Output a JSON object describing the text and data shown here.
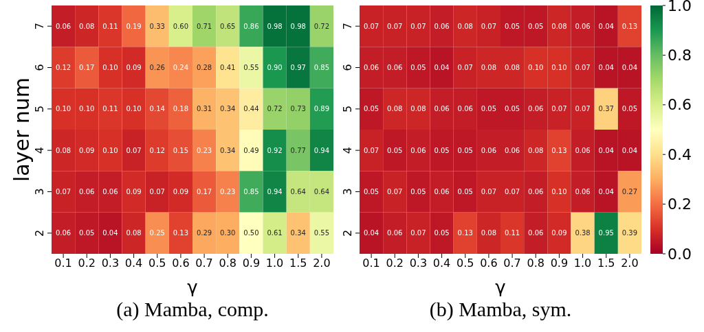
{
  "chart_data": [
    {
      "type": "heatmap",
      "title": "(a) Mamba, comp.",
      "xlabel": "γ",
      "ylabel": "layer num",
      "categories": [
        "0.1",
        "0.2",
        "0.3",
        "0.4",
        "0.5",
        "0.6",
        "0.7",
        "0.8",
        "0.9",
        "1.0",
        "1.5",
        "2.0"
      ],
      "y_categories": [
        "7",
        "6",
        "5",
        "4",
        "3",
        "2"
      ],
      "cells": [
        [
          0.06,
          0.08,
          0.11,
          0.19,
          0.33,
          0.6,
          0.71,
          0.65,
          0.86,
          0.98,
          0.98,
          0.72
        ],
        [
          0.12,
          0.17,
          0.1,
          0.09,
          0.26,
          0.24,
          0.28,
          0.41,
          0.55,
          0.9,
          0.97,
          0.85
        ],
        [
          0.1,
          0.1,
          0.11,
          0.1,
          0.14,
          0.18,
          0.31,
          0.34,
          0.44,
          0.72,
          0.73,
          0.89
        ],
        [
          0.08,
          0.09,
          0.1,
          0.07,
          0.12,
          0.15,
          0.23,
          0.34,
          0.49,
          0.92,
          0.77,
          0.94
        ],
        [
          0.07,
          0.06,
          0.06,
          0.09,
          0.07,
          0.09,
          0.17,
          0.23,
          0.85,
          0.94,
          0.64,
          0.64
        ],
        [
          0.06,
          0.05,
          0.04,
          0.08,
          0.25,
          0.13,
          0.29,
          0.3,
          0.5,
          0.61,
          0.34,
          0.55
        ]
      ],
      "cell_labels": [
        [
          "0.06",
          "0.08",
          "0.11",
          "0.19",
          "0.33",
          "0.60",
          "0.71",
          "0.65",
          "0.86",
          "0.98",
          "0.98",
          "0.72"
        ],
        [
          "0.12",
          "0.17",
          "0.10",
          "0.09",
          "0.26",
          "0.24",
          "0.28",
          "0.41",
          "0.55",
          "0.90",
          "0.97",
          "0.85"
        ],
        [
          "0.10",
          "0.10",
          "0.11",
          "0.10",
          "0.14",
          "0.18",
          "0.31",
          "0.34",
          "0.44",
          "0.72",
          "0.73",
          "0.89"
        ],
        [
          "0.08",
          "0.09",
          "0.10",
          "0.07",
          "0.12",
          "0.15",
          "0.23",
          "0.34",
          "0.49",
          "0.92",
          "0.77",
          "0.94"
        ],
        [
          "0.07",
          "0.06",
          "0.06",
          "0.09",
          "0.07",
          "0.09",
          "0.17",
          "0.23",
          "0.85",
          "0.94",
          "0.64",
          "0.64"
        ],
        [
          "0.06",
          "0.05",
          "0.04",
          "0.08",
          "0.25",
          "0.13",
          "0.29",
          "0.30",
          "0.50",
          "0.61",
          "0.34",
          "0.55"
        ]
      ]
    },
    {
      "type": "heatmap",
      "title": "(b) Mamba, sym.",
      "xlabel": "γ",
      "categories": [
        "0.1",
        "0.2",
        "0.3",
        "0.4",
        "0.5",
        "0.6",
        "0.7",
        "0.8",
        "0.9",
        "1.0",
        "1.5",
        "2.0"
      ],
      "y_categories": [
        "7",
        "6",
        "5",
        "4",
        "3",
        "2"
      ],
      "cells": [
        [
          0.07,
          0.07,
          0.07,
          0.06,
          0.08,
          0.07,
          0.05,
          0.05,
          0.08,
          0.06,
          0.04,
          0.13
        ],
        [
          0.06,
          0.06,
          0.05,
          0.04,
          0.07,
          0.08,
          0.08,
          0.1,
          0.1,
          0.07,
          0.04,
          0.04
        ],
        [
          0.05,
          0.08,
          0.08,
          0.06,
          0.06,
          0.05,
          0.05,
          0.06,
          0.07,
          0.07,
          0.37,
          0.05
        ],
        [
          0.07,
          0.05,
          0.06,
          0.05,
          0.05,
          0.06,
          0.06,
          0.08,
          0.13,
          0.06,
          0.04,
          0.04
        ],
        [
          0.05,
          0.07,
          0.05,
          0.06,
          0.05,
          0.07,
          0.07,
          0.06,
          0.1,
          0.06,
          0.04,
          0.27
        ],
        [
          0.04,
          0.06,
          0.07,
          0.05,
          0.13,
          0.08,
          0.11,
          0.06,
          0.09,
          0.38,
          0.95,
          0.39
        ]
      ],
      "cell_labels": [
        [
          "0.07",
          "0.07",
          "0.07",
          "0.06",
          "0.08",
          "0.07",
          "0.05",
          "0.05",
          "0.08",
          "0.06",
          "0.04",
          "0.13"
        ],
        [
          "0.06",
          "0.06",
          "0.05",
          "0.04",
          "0.07",
          "0.08",
          "0.08",
          "0.10",
          "0.10",
          "0.07",
          "0.04",
          "0.04"
        ],
        [
          "0.05",
          "0.08",
          "0.08",
          "0.06",
          "0.06",
          "0.05",
          "0.05",
          "0.06",
          "0.07",
          "0.07",
          "0.37",
          "0.05"
        ],
        [
          "0.07",
          "0.05",
          "0.06",
          "0.05",
          "0.05",
          "0.06",
          "0.06",
          "0.08",
          "0.13",
          "0.06",
          "0.04",
          "0.04"
        ],
        [
          "0.05",
          "0.07",
          "0.05",
          "0.06",
          "0.05",
          "0.07",
          "0.07",
          "0.06",
          "0.10",
          "0.06",
          "0.04",
          "0.27"
        ],
        [
          "0.04",
          "0.06",
          "0.07",
          "0.05",
          "0.13",
          "0.08",
          "0.11",
          "0.06",
          "0.09",
          "0.38",
          "0.95",
          "0.39"
        ]
      ],
      "clim": [
        0,
        1
      ],
      "cticks": [
        {
          "value": 0,
          "label": "0.0"
        },
        {
          "value": 0.2,
          "label": "0.2"
        },
        {
          "value": 0.4,
          "label": "0.4"
        },
        {
          "value": 0.6,
          "label": "0.6"
        },
        {
          "value": 0.8,
          "label": "0.8"
        },
        {
          "value": 1,
          "label": "1.0"
        }
      ]
    }
  ]
}
